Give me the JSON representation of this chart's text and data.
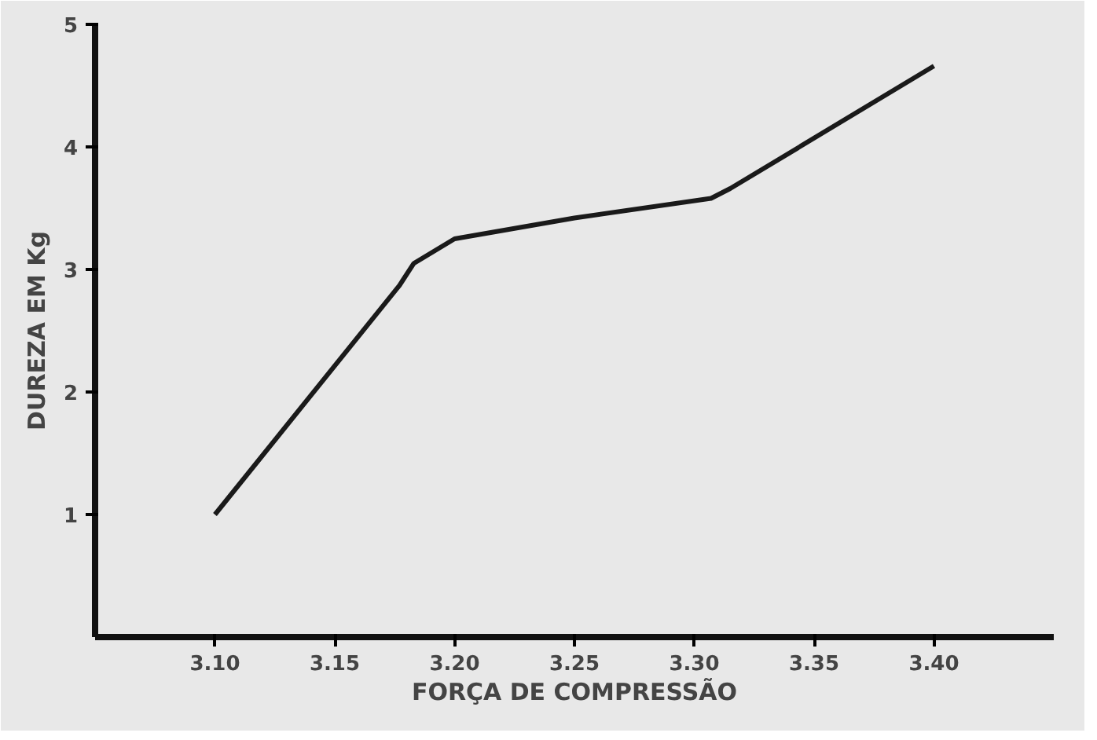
{
  "chart_data": {
    "type": "line",
    "xlabel": "FORÇA DE COMPRESSÃO",
    "ylabel": "DUREZA EM Kg",
    "x": [
      3.1,
      3.177,
      3.183,
      3.2,
      3.25,
      3.307,
      3.315,
      3.4
    ],
    "series": [
      {
        "color": "#1a1a1a",
        "values": [
          1.0,
          2.87,
          3.05,
          3.25,
          3.42,
          3.58,
          3.66,
          4.66
        ]
      }
    ],
    "xlim": [
      3.05,
      3.45
    ],
    "ylim": [
      0,
      5
    ],
    "xticks": [
      {
        "value": 3.1,
        "label": "3.10"
      },
      {
        "value": 3.15,
        "label": "3.15"
      },
      {
        "value": 3.2,
        "label": "3.20"
      },
      {
        "value": 3.25,
        "label": "3.25"
      },
      {
        "value": 3.3,
        "label": "3.30"
      },
      {
        "value": 3.35,
        "label": "3.35"
      },
      {
        "value": 3.4,
        "label": "3.40"
      }
    ],
    "yticks": [
      1,
      2,
      3,
      4,
      5
    ],
    "marker": "none",
    "line_style": "solid"
  }
}
